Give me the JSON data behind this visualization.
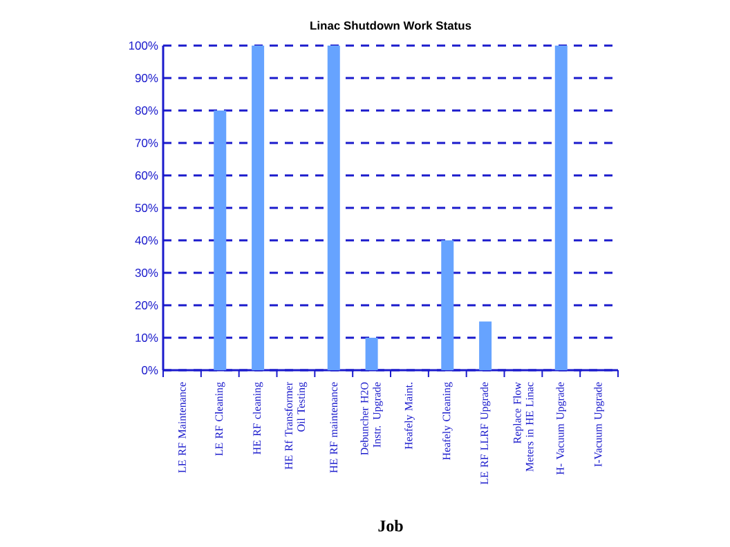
{
  "chart_data": {
    "type": "bar",
    "title": "Linac Shutdown Work Status",
    "xlabel": "Job",
    "categories": [
      "LE RF Maintenance",
      "LE RF Cleaning",
      "HE RF cleaning",
      "HE Rf Transformer Oil Testing",
      "HE RF maintenance",
      "Debuncher H2O Instr. Upgrade",
      "Heafely Maint.",
      "Heafely Cleaning",
      "LE RF LLRF Upgrade",
      "Replace Flow Meters in HE Linac",
      "H- Vacuum Upgrade",
      "I-Vacuum Upgrade"
    ],
    "values": [
      0,
      80,
      100,
      0,
      100,
      10,
      0,
      40,
      15,
      0,
      100,
      0
    ],
    "color": "#66a3ff",
    "ylim": [
      0,
      100
    ],
    "yticks": [
      {
        "value": 0,
        "label": "0%"
      },
      {
        "value": 10,
        "label": "10%"
      },
      {
        "value": 20,
        "label": "20%"
      },
      {
        "value": 30,
        "label": "30%"
      },
      {
        "value": 40,
        "label": "40%"
      },
      {
        "value": 50,
        "label": "50%"
      },
      {
        "value": 60,
        "label": "60%"
      },
      {
        "value": 70,
        "label": "70%"
      },
      {
        "value": 80,
        "label": "80%"
      },
      {
        "value": 90,
        "label": "90%"
      },
      {
        "value": 100,
        "label": "100%"
      }
    ],
    "grid": "y"
  }
}
